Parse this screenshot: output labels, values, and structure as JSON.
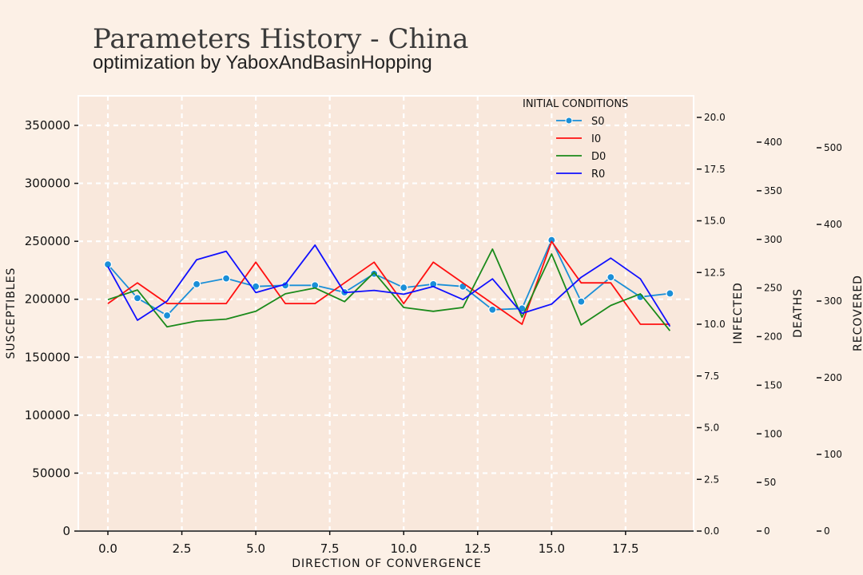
{
  "chart_data": {
    "type": "line",
    "title": "Parameters History - China",
    "subtitle": "optimization by YaboxAndBasinHopping",
    "xlabel": "DIRECTION OF CONVERGENCE",
    "x": [
      0,
      1,
      2,
      3,
      4,
      5,
      6,
      7,
      8,
      9,
      10,
      11,
      12,
      13,
      14,
      15,
      16,
      17,
      18,
      19
    ],
    "xlim": [
      -1,
      19.8
    ],
    "x_ticks": [
      "0.0",
      "2.5",
      "5.0",
      "7.5",
      "10.0",
      "12.5",
      "15.0",
      "17.5"
    ],
    "axes": {
      "susceptibles": {
        "label": "SUSCEPTIBLES",
        "ylim": [
          0,
          350000
        ],
        "ticks": [
          "0",
          "50000",
          "100000",
          "150000",
          "200000",
          "250000",
          "300000",
          "350000"
        ]
      },
      "infected": {
        "label": "INFECTED",
        "ylim": [
          0,
          20
        ],
        "ticks": [
          "0.0",
          "2.5",
          "5.0",
          "7.5",
          "10.0",
          "12.5",
          "15.0",
          "17.5",
          "20.0"
        ]
      },
      "deaths": {
        "label": "DEATHS",
        "ylim": [
          0,
          400
        ],
        "ticks": [
          "0",
          "50",
          "100",
          "150",
          "200",
          "250",
          "300",
          "350",
          "400"
        ]
      },
      "recovered": {
        "label": "RECOVERED",
        "ylim": [
          0,
          500
        ],
        "ticks": [
          "0",
          "100",
          "200",
          "300",
          "400",
          "500"
        ]
      }
    },
    "legend": {
      "title": "INITIAL CONDITIONS",
      "position": "top-right"
    },
    "series": [
      {
        "name": "S0",
        "axis": "susceptibles",
        "color": "#1a8fd8",
        "markers": true,
        "values": [
          230000,
          201000,
          186000,
          213000,
          218000,
          211000,
          212000,
          212000,
          206000,
          222000,
          210000,
          213000,
          211000,
          191000,
          192000,
          251000,
          198000,
          219000,
          202000,
          205000
        ]
      },
      {
        "name": "I0",
        "axis": "infected",
        "color": "#ff1010",
        "values": [
          11.0,
          12.0,
          11.0,
          11.0,
          11.0,
          13.0,
          11.0,
          11.0,
          12.0,
          13.0,
          11.0,
          13.0,
          12.0,
          11.0,
          10.0,
          14.0,
          12.0,
          12.0,
          10.0,
          10.0
        ]
      },
      {
        "name": "D0",
        "axis": "deaths",
        "color": "#1b8a1b",
        "values": [
          238,
          248,
          210,
          216,
          218,
          226,
          244,
          250,
          236,
          266,
          230,
          226,
          230,
          290,
          220,
          285,
          212,
          232,
          244,
          206
        ]
      },
      {
        "name": "R0",
        "axis": "recovered",
        "color": "#1010ff",
        "values": [
          345,
          275,
          300,
          354,
          365,
          311,
          322,
          373,
          311,
          314,
          309,
          319,
          302,
          329,
          284,
          296,
          331,
          356,
          329,
          267
        ]
      }
    ]
  }
}
